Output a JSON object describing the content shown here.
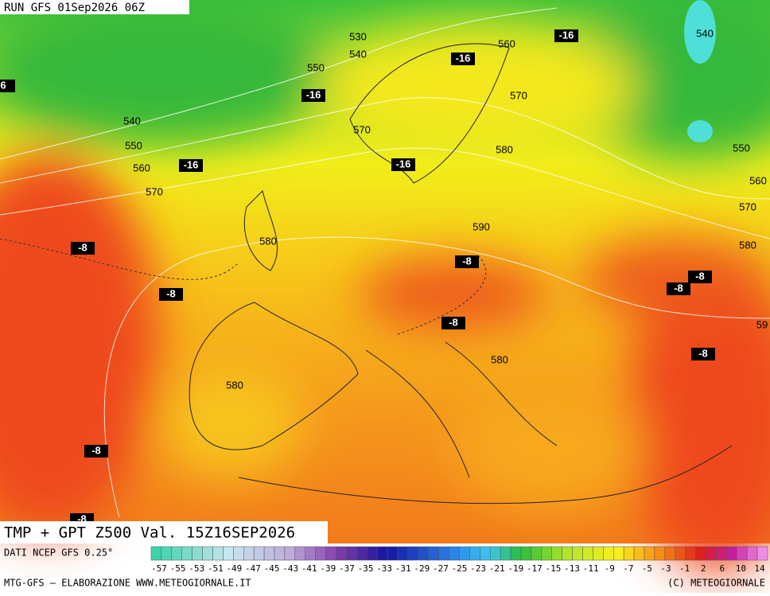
{
  "header": {
    "run": "RUN GFS 01Sep2026 06Z"
  },
  "map": {
    "title": "TMP + GPT Z500 Val. 15Z16SEP2026",
    "contour_labels": [
      "530",
      "540",
      "550",
      "560",
      "540",
      "570",
      "540",
      "550",
      "560",
      "570",
      "580",
      "570",
      "550",
      "560",
      "570",
      "580",
      "590",
      "580",
      "580",
      "580",
      "59"
    ],
    "temperature_labels": [
      "-16",
      "-16",
      "-16",
      "-16",
      "-16",
      "-8",
      "-8",
      "-8",
      "-8",
      "-8",
      "-8",
      "-8",
      "-8",
      "-8",
      "6"
    ]
  },
  "footer": {
    "source": "DATI NCEP GFS 0.25°",
    "credit": "MTG-GFS – ELABORAZIONE WWW.METEOGIORNALE.IT",
    "copyright": "(C) METEOGIORNALE",
    "legend_ticks": [
      "-57",
      "-55",
      "-53",
      "-51",
      "-49",
      "-47",
      "-45",
      "-43",
      "-41",
      "-39",
      "-37",
      "-35",
      "-33",
      "-31",
      "-29",
      "-27",
      "-25",
      "-23",
      "-21",
      "-19",
      "-17",
      "-15",
      "-13",
      "-11",
      "-9",
      "-7",
      "-5",
      "-3",
      "-1",
      "2",
      "6",
      "10",
      "14"
    ]
  }
}
